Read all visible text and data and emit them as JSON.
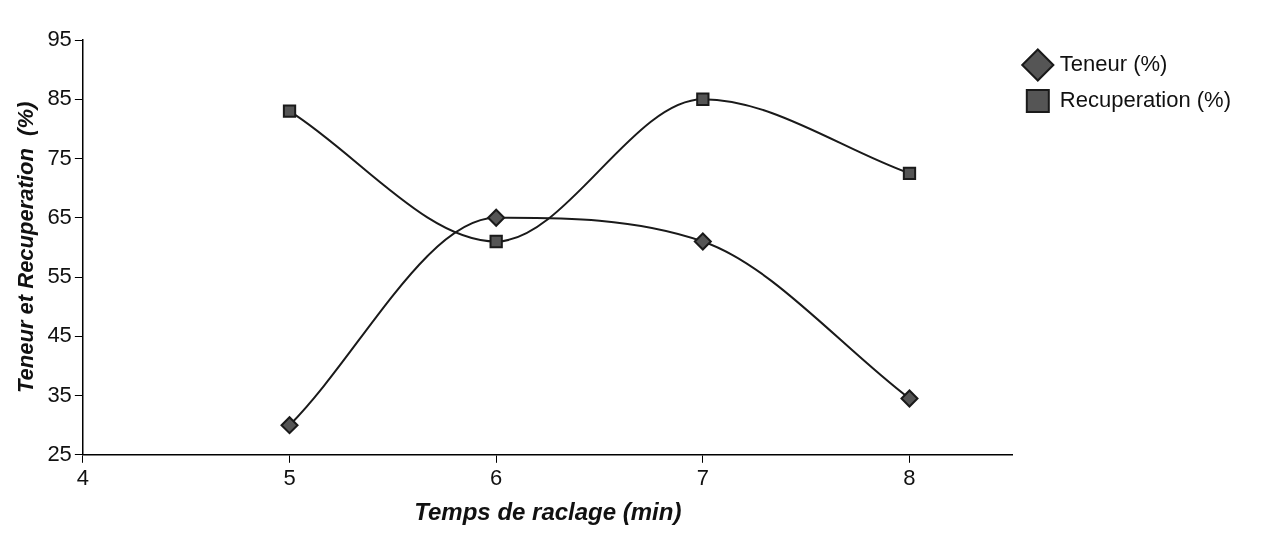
{
  "chart_data": {
    "type": "line",
    "xlabel": "Temps de raclage (min)",
    "ylabel": "Teneur et Recuperation  (%)",
    "x": [
      5,
      6,
      7,
      8
    ],
    "xlim": [
      4,
      8.5
    ],
    "xticks": [
      4,
      5,
      6,
      7,
      8
    ],
    "ylim": [
      25,
      95
    ],
    "yticks": [
      25,
      35,
      45,
      55,
      65,
      75,
      85,
      95
    ],
    "grid": false,
    "legend": "top right",
    "series": [
      {
        "name": "Teneur (%)",
        "color": "#1a1a1a",
        "marker": "diamond",
        "values": [
          30,
          65,
          61,
          34.5
        ]
      },
      {
        "name": "Recuperation (%)",
        "color": "#1a1a1a",
        "marker": "square",
        "values": [
          83,
          61,
          85,
          72.5
        ]
      }
    ]
  }
}
